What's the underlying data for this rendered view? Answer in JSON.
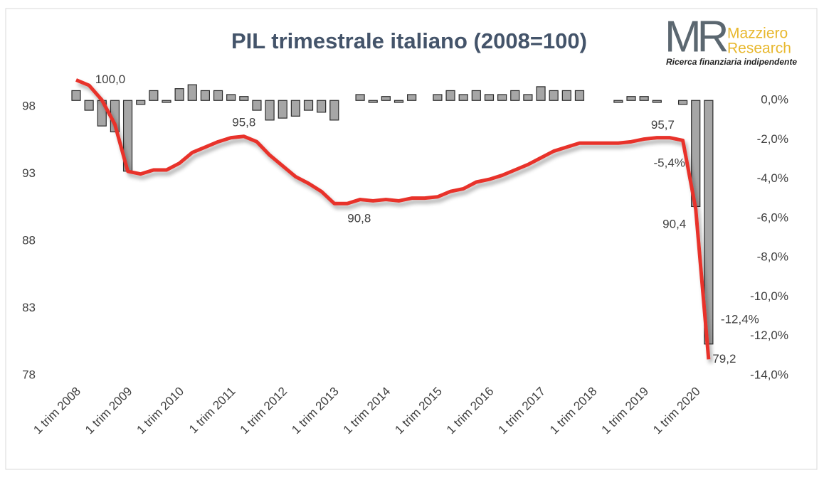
{
  "chart_data": {
    "type": "bar_line",
    "title": "PIL trimestrale italiano (2008=100)",
    "categories": [
      "1 trim 2008",
      null,
      null,
      null,
      "1 trim 2009",
      null,
      null,
      null,
      "1 trim 2010",
      null,
      null,
      null,
      "1 trim 2011",
      null,
      null,
      null,
      "1 trim 2012",
      null,
      null,
      null,
      "1 trim 2013",
      null,
      null,
      null,
      "1 trim 2014",
      null,
      null,
      null,
      "1 trim 2015",
      null,
      null,
      null,
      "1 trim 2016",
      null,
      null,
      null,
      "1 trim 2017",
      null,
      null,
      null,
      "1 trim 2018",
      null,
      null,
      null,
      "1 trim 2019",
      null,
      null,
      null,
      "1 trim 2020",
      null
    ],
    "series": [
      {
        "type": "bar",
        "axis": "y2",
        "color": "#a6a6a6",
        "values": [
          0.5,
          -0.5,
          -1.3,
          -1.6,
          -3.6,
          -0.2,
          0.5,
          -0.1,
          0.6,
          0.8,
          0.5,
          0.5,
          0.3,
          0.2,
          -0.5,
          -1.0,
          -0.9,
          -0.8,
          -0.5,
          -0.6,
          -1.0,
          0,
          0.3,
          -0.1,
          0.2,
          -0.1,
          0.3,
          0,
          0.3,
          0.5,
          0.3,
          0.5,
          0.3,
          0.3,
          0.5,
          0.3,
          0.7,
          0.5,
          0.5,
          0.5,
          0,
          0,
          -0.1,
          0.2,
          0.2,
          -0.1,
          0,
          -0.2,
          -5.4,
          -12.4
        ],
        "value_labels": [
          null,
          null,
          null,
          null,
          null,
          null,
          null,
          null,
          null,
          null,
          null,
          null,
          null,
          null,
          null,
          null,
          null,
          null,
          null,
          null,
          null,
          null,
          null,
          null,
          null,
          null,
          null,
          null,
          null,
          null,
          null,
          null,
          null,
          null,
          null,
          null,
          null,
          null,
          null,
          null,
          null,
          null,
          null,
          null,
          null,
          null,
          null,
          null,
          "-5,4%",
          "-12,4%"
        ]
      },
      {
        "type": "line",
        "color": "#e8302a",
        "values": [
          100.0,
          99.6,
          98.5,
          96.7,
          93.2,
          93.0,
          93.3,
          93.3,
          93.8,
          94.6,
          95.0,
          95.4,
          95.7,
          95.8,
          95.4,
          94.4,
          93.6,
          92.8,
          92.3,
          91.7,
          90.8,
          90.8,
          91.1,
          91.0,
          91.1,
          91.0,
          91.2,
          91.2,
          91.3,
          91.7,
          91.9,
          92.4,
          92.6,
          92.9,
          93.3,
          93.7,
          94.2,
          94.7,
          95.0,
          95.3,
          95.3,
          95.3,
          95.3,
          95.4,
          95.6,
          95.7,
          95.7,
          95.5,
          90.4,
          79.2
        ],
        "value_labels": [
          "100,0",
          null,
          null,
          null,
          null,
          null,
          null,
          null,
          null,
          null,
          null,
          null,
          null,
          "95,8",
          null,
          null,
          null,
          null,
          null,
          null,
          "90,8",
          null,
          null,
          null,
          null,
          null,
          null,
          null,
          null,
          null,
          null,
          null,
          null,
          null,
          null,
          null,
          null,
          null,
          null,
          null,
          null,
          null,
          null,
          null,
          null,
          null,
          "95,7",
          null,
          "90,4",
          "79,2"
        ]
      }
    ],
    "ylim": [
      78,
      101.4
    ],
    "yticks": [
      78,
      83,
      88,
      93,
      98
    ],
    "y2lim": [
      -14,
      2
    ],
    "y2ticks": [
      {
        "value": 0,
        "label": "0,0%"
      },
      {
        "value": -2,
        "label": "-2,0%"
      },
      {
        "value": -4,
        "label": "-4,0%"
      },
      {
        "value": -6,
        "label": "-6,0%"
      },
      {
        "value": -8,
        "label": "-8,0%"
      },
      {
        "value": -10,
        "label": "-10,0%"
      },
      {
        "value": -12,
        "label": "-12,0%"
      },
      {
        "value": -14,
        "label": "-14,0%"
      }
    ],
    "grid": false
  },
  "logo": {
    "mark": "MR",
    "name1": "Mazziero",
    "name2": "Research",
    "tagline": "Ricerca finanziaria indipendente"
  }
}
